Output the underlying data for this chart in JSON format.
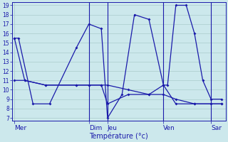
{
  "xlabel": "Température (°c)",
  "background_color": "#cce8ec",
  "grid_color": "#aacccc",
  "line_color": "#1a1aaa",
  "ylim": [
    7,
    19
  ],
  "yticks": [
    7,
    8,
    9,
    10,
    11,
    12,
    13,
    14,
    15,
    16,
    17,
    18,
    19
  ],
  "day_labels": [
    "Mer",
    "Dim",
    "Jeu",
    "Ven",
    "Sar"
  ],
  "day_positions": [
    0.0,
    0.36,
    0.45,
    0.72,
    0.95
  ],
  "lines": {
    "line1": {
      "x": [
        0.0,
        0.02,
        0.09,
        0.17,
        0.3,
        0.36,
        0.42,
        0.45,
        0.52,
        0.58,
        0.65,
        0.72,
        0.74,
        0.78,
        0.83,
        0.87,
        0.91,
        0.95,
        1.0
      ],
      "y": [
        15.5,
        15.5,
        8.5,
        8.5,
        14.5,
        17.0,
        16.5,
        7.0,
        9.5,
        18.0,
        17.5,
        10.5,
        10.5,
        19.0,
        19.0,
        16.0,
        11.0,
        9.0,
        9.0
      ]
    },
    "line2": {
      "x": [
        0.0,
        0.05,
        0.15,
        0.3,
        0.36,
        0.42,
        0.45,
        0.55,
        0.65,
        0.72,
        0.78,
        0.87,
        0.95,
        1.0
      ],
      "y": [
        11.0,
        11.0,
        10.5,
        10.5,
        10.5,
        10.5,
        8.5,
        9.5,
        9.5,
        10.5,
        8.5,
        8.5,
        8.5,
        8.5
      ]
    },
    "line3": {
      "x": [
        0.0,
        0.05,
        0.15,
        0.3,
        0.36,
        0.42,
        0.45,
        0.55,
        0.65,
        0.72,
        0.78,
        0.87,
        0.95,
        1.0
      ],
      "y": [
        15.5,
        11.0,
        10.5,
        10.5,
        10.5,
        10.5,
        10.5,
        10.0,
        9.5,
        9.5,
        9.0,
        8.5,
        8.5,
        8.5
      ]
    }
  }
}
